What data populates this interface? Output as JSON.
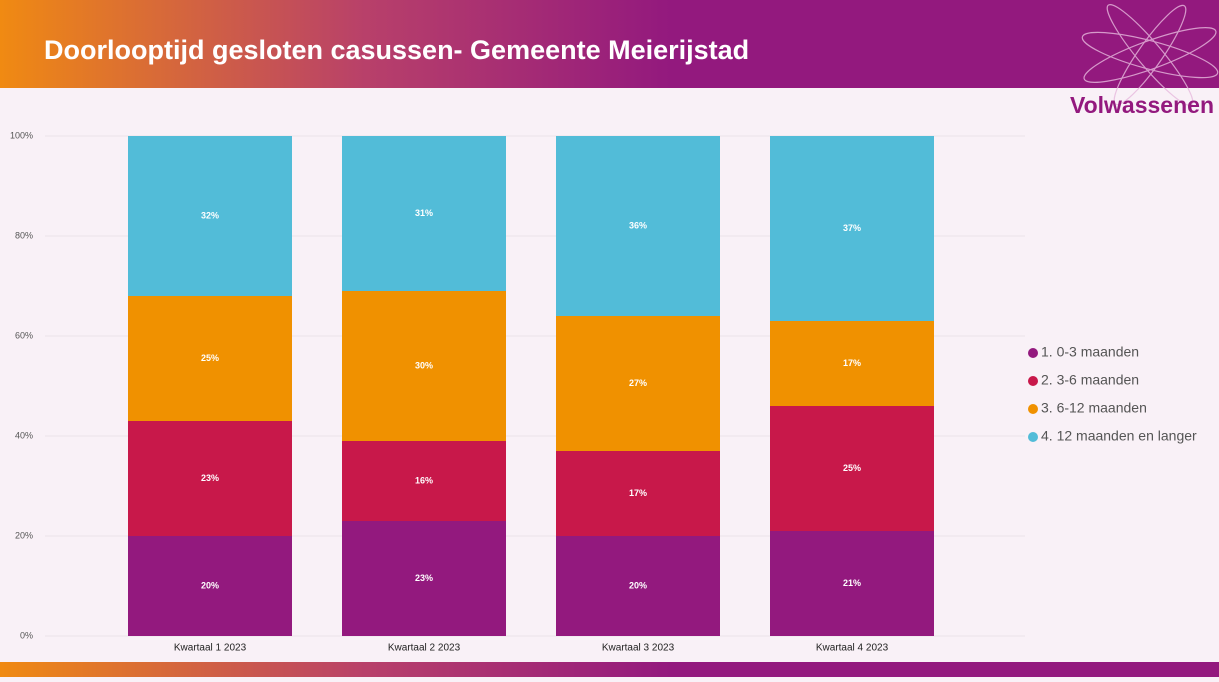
{
  "chart_data": {
    "type": "stacked_bar",
    "title": "Doorlooptijd gesloten casussen- Gemeente Meierijstad",
    "subtitle": "Volwassenen",
    "categories": [
      "Kwartaal 1 2023",
      "Kwartaal 2 2023",
      "Kwartaal 3 2023",
      "Kwartaal 4 2023"
    ],
    "series": [
      {
        "name": "1. 0-3 maanden",
        "color": "#93197e",
        "values": [
          20,
          23,
          20,
          21
        ],
        "value_labels": [
          "20%",
          "23%",
          "20%",
          "21%"
        ]
      },
      {
        "name": "2. 3-6 maanden",
        "color": "#c8184a",
        "values": [
          23,
          16,
          17,
          25
        ],
        "value_labels": [
          "23%",
          "16%",
          "17%",
          "25%"
        ]
      },
      {
        "name": "3. 6-12 maanden",
        "color": "#f09100",
        "values": [
          25,
          30,
          27,
          17
        ],
        "value_labels": [
          "25%",
          "30%",
          "27%",
          "17%"
        ]
      },
      {
        "name": "4. 12 maanden en langer",
        "color": "#52bcd8",
        "values": [
          32,
          31,
          36,
          37
        ],
        "value_labels": [
          "32%",
          "31%",
          "36%",
          "37%"
        ]
      }
    ],
    "ylim": [
      0,
      100
    ],
    "yticks": [
      {
        "value": 0,
        "label": "0%"
      },
      {
        "value": 20,
        "label": "20%"
      },
      {
        "value": 40,
        "label": "40%"
      },
      {
        "value": 60,
        "label": "60%"
      },
      {
        "value": 80,
        "label": "80%"
      },
      {
        "value": 100,
        "label": "100%"
      }
    ],
    "grid": true,
    "legend": "right"
  }
}
